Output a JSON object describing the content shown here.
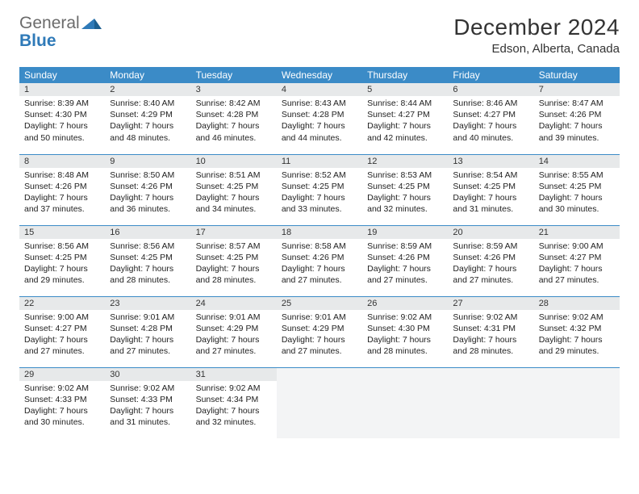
{
  "logo": {
    "text_gray": "General",
    "text_blue": "Blue",
    "tri_color": "#2f7ab8"
  },
  "title": "December 2024",
  "subtitle": "Edson, Alberta, Canada",
  "colors": {
    "header_bg": "#3b8bc7",
    "header_fg": "#ffffff",
    "daynum_bg": "#e7e9ea",
    "rule": "#3b8bc7",
    "empty_bg": "#f3f4f5"
  },
  "day_headers": [
    "Sunday",
    "Monday",
    "Tuesday",
    "Wednesday",
    "Thursday",
    "Friday",
    "Saturday"
  ],
  "weeks": [
    [
      {
        "n": "1",
        "sr": "Sunrise: 8:39 AM",
        "ss": "Sunset: 4:30 PM",
        "d1": "Daylight: 7 hours",
        "d2": "and 50 minutes."
      },
      {
        "n": "2",
        "sr": "Sunrise: 8:40 AM",
        "ss": "Sunset: 4:29 PM",
        "d1": "Daylight: 7 hours",
        "d2": "and 48 minutes."
      },
      {
        "n": "3",
        "sr": "Sunrise: 8:42 AM",
        "ss": "Sunset: 4:28 PM",
        "d1": "Daylight: 7 hours",
        "d2": "and 46 minutes."
      },
      {
        "n": "4",
        "sr": "Sunrise: 8:43 AM",
        "ss": "Sunset: 4:28 PM",
        "d1": "Daylight: 7 hours",
        "d2": "and 44 minutes."
      },
      {
        "n": "5",
        "sr": "Sunrise: 8:44 AM",
        "ss": "Sunset: 4:27 PM",
        "d1": "Daylight: 7 hours",
        "d2": "and 42 minutes."
      },
      {
        "n": "6",
        "sr": "Sunrise: 8:46 AM",
        "ss": "Sunset: 4:27 PM",
        "d1": "Daylight: 7 hours",
        "d2": "and 40 minutes."
      },
      {
        "n": "7",
        "sr": "Sunrise: 8:47 AM",
        "ss": "Sunset: 4:26 PM",
        "d1": "Daylight: 7 hours",
        "d2": "and 39 minutes."
      }
    ],
    [
      {
        "n": "8",
        "sr": "Sunrise: 8:48 AM",
        "ss": "Sunset: 4:26 PM",
        "d1": "Daylight: 7 hours",
        "d2": "and 37 minutes."
      },
      {
        "n": "9",
        "sr": "Sunrise: 8:50 AM",
        "ss": "Sunset: 4:26 PM",
        "d1": "Daylight: 7 hours",
        "d2": "and 36 minutes."
      },
      {
        "n": "10",
        "sr": "Sunrise: 8:51 AM",
        "ss": "Sunset: 4:25 PM",
        "d1": "Daylight: 7 hours",
        "d2": "and 34 minutes."
      },
      {
        "n": "11",
        "sr": "Sunrise: 8:52 AM",
        "ss": "Sunset: 4:25 PM",
        "d1": "Daylight: 7 hours",
        "d2": "and 33 minutes."
      },
      {
        "n": "12",
        "sr": "Sunrise: 8:53 AM",
        "ss": "Sunset: 4:25 PM",
        "d1": "Daylight: 7 hours",
        "d2": "and 32 minutes."
      },
      {
        "n": "13",
        "sr": "Sunrise: 8:54 AM",
        "ss": "Sunset: 4:25 PM",
        "d1": "Daylight: 7 hours",
        "d2": "and 31 minutes."
      },
      {
        "n": "14",
        "sr": "Sunrise: 8:55 AM",
        "ss": "Sunset: 4:25 PM",
        "d1": "Daylight: 7 hours",
        "d2": "and 30 minutes."
      }
    ],
    [
      {
        "n": "15",
        "sr": "Sunrise: 8:56 AM",
        "ss": "Sunset: 4:25 PM",
        "d1": "Daylight: 7 hours",
        "d2": "and 29 minutes."
      },
      {
        "n": "16",
        "sr": "Sunrise: 8:56 AM",
        "ss": "Sunset: 4:25 PM",
        "d1": "Daylight: 7 hours",
        "d2": "and 28 minutes."
      },
      {
        "n": "17",
        "sr": "Sunrise: 8:57 AM",
        "ss": "Sunset: 4:25 PM",
        "d1": "Daylight: 7 hours",
        "d2": "and 28 minutes."
      },
      {
        "n": "18",
        "sr": "Sunrise: 8:58 AM",
        "ss": "Sunset: 4:26 PM",
        "d1": "Daylight: 7 hours",
        "d2": "and 27 minutes."
      },
      {
        "n": "19",
        "sr": "Sunrise: 8:59 AM",
        "ss": "Sunset: 4:26 PM",
        "d1": "Daylight: 7 hours",
        "d2": "and 27 minutes."
      },
      {
        "n": "20",
        "sr": "Sunrise: 8:59 AM",
        "ss": "Sunset: 4:26 PM",
        "d1": "Daylight: 7 hours",
        "d2": "and 27 minutes."
      },
      {
        "n": "21",
        "sr": "Sunrise: 9:00 AM",
        "ss": "Sunset: 4:27 PM",
        "d1": "Daylight: 7 hours",
        "d2": "and 27 minutes."
      }
    ],
    [
      {
        "n": "22",
        "sr": "Sunrise: 9:00 AM",
        "ss": "Sunset: 4:27 PM",
        "d1": "Daylight: 7 hours",
        "d2": "and 27 minutes."
      },
      {
        "n": "23",
        "sr": "Sunrise: 9:01 AM",
        "ss": "Sunset: 4:28 PM",
        "d1": "Daylight: 7 hours",
        "d2": "and 27 minutes."
      },
      {
        "n": "24",
        "sr": "Sunrise: 9:01 AM",
        "ss": "Sunset: 4:29 PM",
        "d1": "Daylight: 7 hours",
        "d2": "and 27 minutes."
      },
      {
        "n": "25",
        "sr": "Sunrise: 9:01 AM",
        "ss": "Sunset: 4:29 PM",
        "d1": "Daylight: 7 hours",
        "d2": "and 27 minutes."
      },
      {
        "n": "26",
        "sr": "Sunrise: 9:02 AM",
        "ss": "Sunset: 4:30 PM",
        "d1": "Daylight: 7 hours",
        "d2": "and 28 minutes."
      },
      {
        "n": "27",
        "sr": "Sunrise: 9:02 AM",
        "ss": "Sunset: 4:31 PM",
        "d1": "Daylight: 7 hours",
        "d2": "and 28 minutes."
      },
      {
        "n": "28",
        "sr": "Sunrise: 9:02 AM",
        "ss": "Sunset: 4:32 PM",
        "d1": "Daylight: 7 hours",
        "d2": "and 29 minutes."
      }
    ],
    [
      {
        "n": "29",
        "sr": "Sunrise: 9:02 AM",
        "ss": "Sunset: 4:33 PM",
        "d1": "Daylight: 7 hours",
        "d2": "and 30 minutes."
      },
      {
        "n": "30",
        "sr": "Sunrise: 9:02 AM",
        "ss": "Sunset: 4:33 PM",
        "d1": "Daylight: 7 hours",
        "d2": "and 31 minutes."
      },
      {
        "n": "31",
        "sr": "Sunrise: 9:02 AM",
        "ss": "Sunset: 4:34 PM",
        "d1": "Daylight: 7 hours",
        "d2": "and 32 minutes."
      },
      null,
      null,
      null,
      null
    ]
  ]
}
